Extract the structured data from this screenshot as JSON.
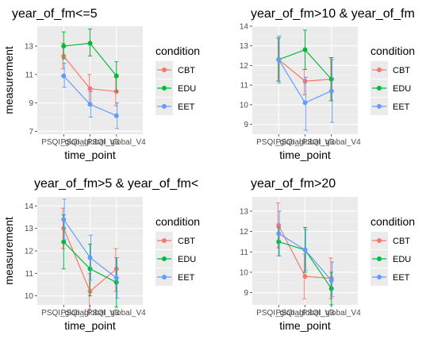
{
  "colors": {
    "CBT": "#F8766D",
    "EDU": "#00BA38",
    "EET": "#619CFF",
    "panel_bg": "#EBEBEB",
    "grid_major": "#FFFFFF",
    "axis_text": "#4D4D4D",
    "title_text": "#000000"
  },
  "legend": {
    "title": "condition",
    "items": [
      "CBT",
      "EDU",
      "EET"
    ]
  },
  "chart_data": [
    {
      "type": "line",
      "title": "year_of_fm<=5",
      "xlabel": "time_point",
      "ylabel": "measurement",
      "categories": [
        "PSQI_global",
        "PSQI_global_V3",
        "PSQI_global_V4"
      ],
      "ylim": [
        6.8,
        14.4
      ],
      "yticks": [
        7,
        9,
        11,
        13
      ],
      "grid": true,
      "legend_position": "right",
      "series": [
        {
          "name": "CBT",
          "values": [
            12.3,
            10.0,
            9.8
          ],
          "err_low": [
            11.4,
            8.9,
            8.8
          ],
          "err_high": [
            13.2,
            11.0,
            10.8
          ]
        },
        {
          "name": "EDU",
          "values": [
            13.0,
            13.2,
            10.9
          ],
          "err_low": [
            12.1,
            12.3,
            9.8
          ],
          "err_high": [
            14.0,
            14.2,
            11.9
          ]
        },
        {
          "name": "EET",
          "values": [
            10.9,
            8.9,
            8.1
          ],
          "err_low": [
            10.1,
            8.0,
            7.2
          ],
          "err_high": [
            11.8,
            9.8,
            9.0
          ]
        }
      ]
    },
    {
      "type": "line",
      "title": "year_of_fm>10 & year_of_fm",
      "xlabel": "time_point",
      "ylabel": "",
      "categories": [
        "PSQI_global",
        "PSQI_global_V3",
        "PSQI_global_V4"
      ],
      "ylim": [
        8.5,
        14.0
      ],
      "yticks": [
        9,
        10,
        11,
        12,
        13,
        14
      ],
      "grid": true,
      "legend_position": "right",
      "series": [
        {
          "name": "CBT",
          "values": [
            12.3,
            11.2,
            11.3
          ],
          "err_low": [
            11.2,
            10.5,
            10.2
          ],
          "err_high": [
            13.4,
            11.8,
            12.4
          ]
        },
        {
          "name": "EDU",
          "values": [
            12.3,
            12.8,
            11.3
          ],
          "err_low": [
            11.2,
            11.8,
            10.2
          ],
          "err_high": [
            13.4,
            13.8,
            12.4
          ]
        },
        {
          "name": "EET",
          "values": [
            12.3,
            10.1,
            10.7
          ],
          "err_low": [
            11.1,
            8.7,
            9.1
          ],
          "err_high": [
            13.5,
            11.4,
            12.3
          ]
        }
      ]
    },
    {
      "type": "line",
      "title": "year_of_fm>5 & year_of_fm<",
      "xlabel": "time_point",
      "ylabel": "measurement",
      "categories": [
        "PSQI_global",
        "PSQI_global_V3",
        "PSQI_global_V4"
      ],
      "ylim": [
        9.6,
        14.4
      ],
      "yticks": [
        10,
        11,
        12,
        13,
        14
      ],
      "grid": true,
      "legend_position": "right",
      "series": [
        {
          "name": "CBT",
          "values": [
            13.0,
            10.2,
            11.2
          ],
          "err_low": [
            12.1,
            9.4,
            10.2
          ],
          "err_high": [
            13.9,
            11.0,
            12.1
          ]
        },
        {
          "name": "EDU",
          "values": [
            12.4,
            11.2,
            10.6
          ],
          "err_low": [
            11.2,
            10.0,
            9.5
          ],
          "err_high": [
            13.6,
            12.3,
            11.7
          ]
        },
        {
          "name": "EET",
          "values": [
            13.4,
            11.7,
            10.8
          ],
          "err_low": [
            12.5,
            10.7,
            9.9
          ],
          "err_high": [
            14.3,
            12.7,
            11.7
          ]
        }
      ]
    },
    {
      "type": "line",
      "title": "year_of_fm>20",
      "xlabel": "time_point",
      "ylabel": "",
      "categories": [
        "PSQI_global",
        "PSQI_global_V3",
        "PSQI_global_V4"
      ],
      "ylim": [
        8.4,
        13.7
      ],
      "yticks": [
        9,
        10,
        11,
        12,
        13
      ],
      "grid": true,
      "legend_position": "right",
      "series": [
        {
          "name": "CBT",
          "values": [
            12.3,
            9.8,
            9.7
          ],
          "err_low": [
            11.2,
            8.7,
            8.7
          ],
          "err_high": [
            13.4,
            10.9,
            10.7
          ]
        },
        {
          "name": "EDU",
          "values": [
            11.5,
            11.1,
            9.2
          ],
          "err_low": [
            10.8,
            10.0,
            8.4
          ],
          "err_high": [
            12.2,
            12.2,
            10.0
          ]
        },
        {
          "name": "EET",
          "values": [
            11.9,
            11.1,
            9.6
          ],
          "err_low": [
            10.8,
            10.1,
            8.8
          ],
          "err_high": [
            13.0,
            12.1,
            10.5
          ]
        }
      ]
    }
  ]
}
